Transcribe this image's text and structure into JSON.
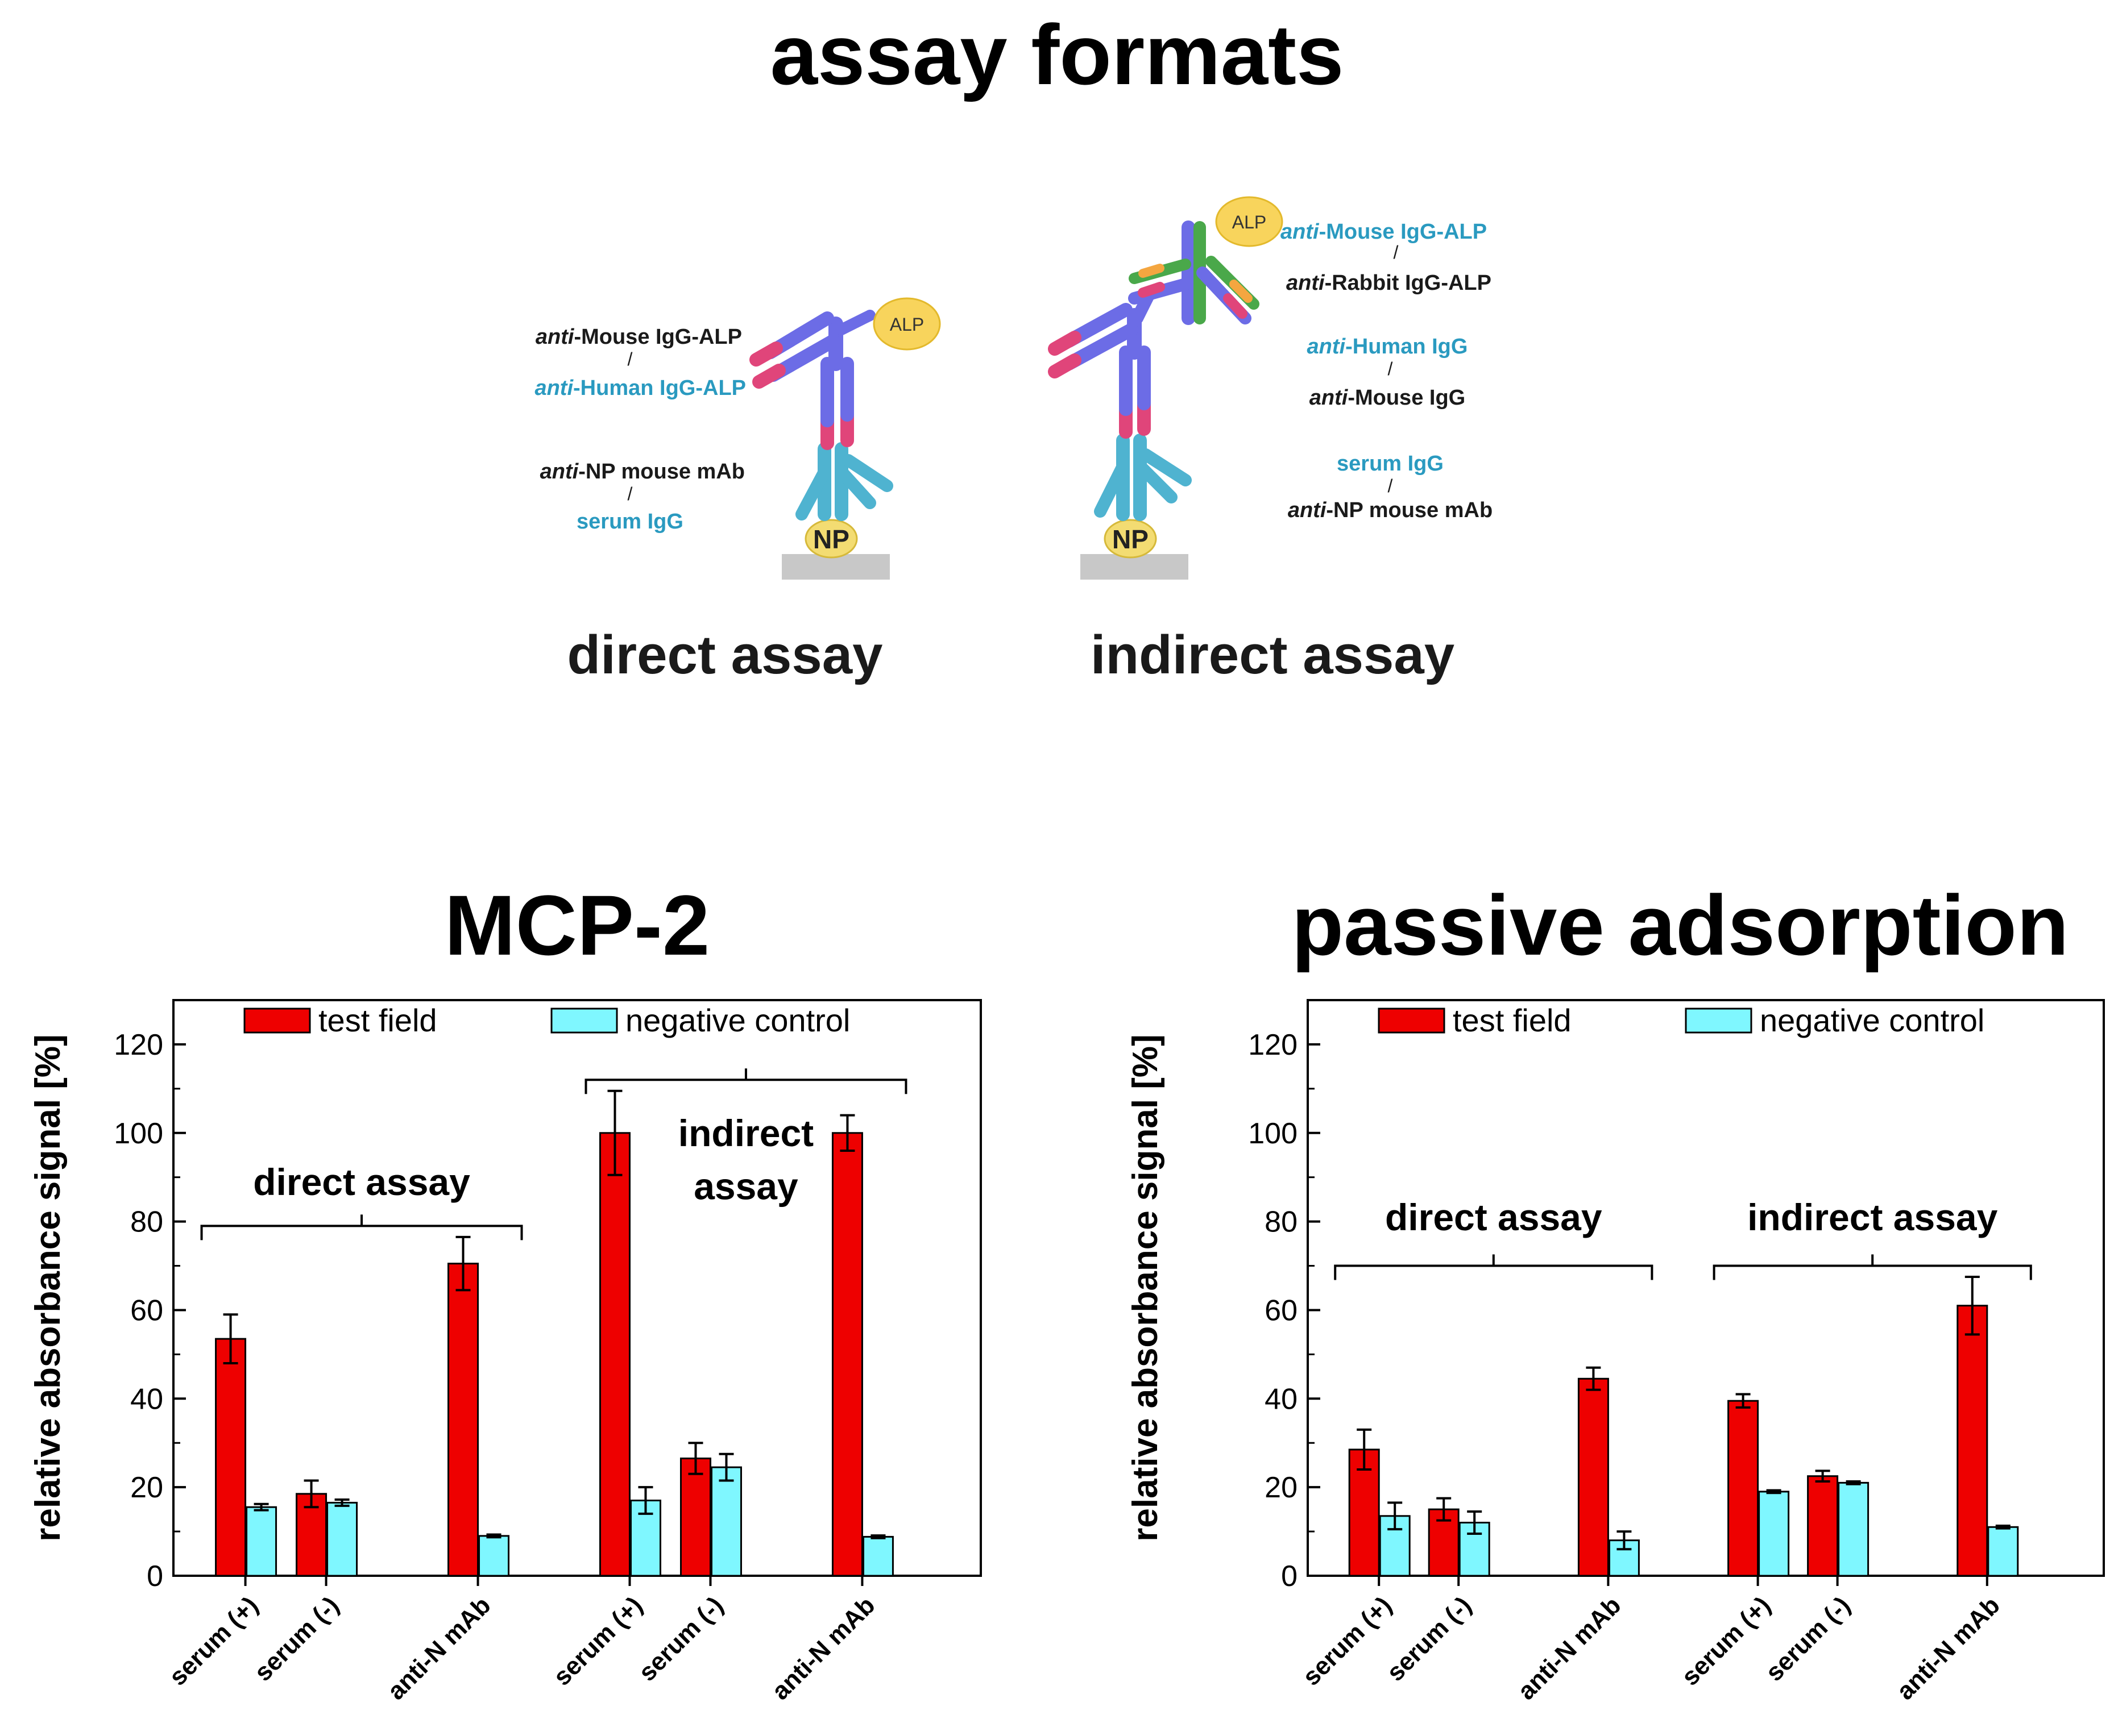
{
  "figure": {
    "title": "assay formats",
    "direct_label": "direct assay",
    "indirect_label": "indirect assay",
    "antigen": "NP",
    "enzyme": "ALP",
    "direct_labels": {
      "detect_1_prefix": "anti",
      "detect_1": "-Mouse IgG-ALP",
      "sep": "/",
      "detect_2_prefix": "anti",
      "detect_2": "-Human IgG-ALP",
      "capture_1_prefix": "anti",
      "capture_1": "-NP mouse mAb",
      "capture_2": "serum IgG"
    },
    "indirect_labels": {
      "sec_1_prefix": "anti",
      "sec_1": "-Mouse IgG-ALP",
      "sec_2_prefix": "anti",
      "sec_2": "-Rabbit IgG-ALP",
      "pri_1_prefix": "anti",
      "pri_1": "-Human IgG",
      "pri_2_prefix": "anti",
      "pri_2": "-Mouse IgG",
      "cap_1": "serum IgG",
      "cap_2_prefix": "anti",
      "cap_2": "-NP mouse mAb"
    }
  },
  "colors": {
    "test": "#ee0000",
    "negative": "#7ff7ff",
    "antibody_purple": "#6c6ce6",
    "antibody_teal": "#4fb3d0",
    "antibody_green": "#4aa84a",
    "tip_pink": "#e0457a",
    "tip_orange": "#f4a640",
    "alp_fill": "#f8d45c",
    "np_fill": "#f3dc72",
    "surface": "#c8c8c8",
    "label_teal": "#2a9ac0"
  },
  "chart_data": [
    {
      "type": "bar",
      "title": "MCP-2",
      "ylabel": "relative absorbance signal [%]",
      "ylim": [
        0,
        130
      ],
      "yticks": [
        0,
        20,
        40,
        60,
        80,
        100,
        120
      ],
      "categories": [
        "serum (+)",
        "serum (-)",
        "anti-N mAb",
        "serum (+)",
        "serum (-)",
        "anti-N mAb"
      ],
      "series": [
        {
          "name": "test field",
          "values": [
            53.5,
            18.5,
            70.5,
            100,
            26.5,
            100
          ],
          "errors": [
            5.5,
            3,
            6,
            9.5,
            3.5,
            4
          ]
        },
        {
          "name": "negative control",
          "values": [
            15.5,
            16.5,
            9,
            17,
            24.5,
            8.8
          ],
          "errors": [
            0.7,
            0.7,
            0.3,
            3,
            3,
            0.3
          ]
        }
      ],
      "groups": [
        {
          "label": "direct assay",
          "first": 0,
          "last": 2
        },
        {
          "label": "indirect assay",
          "label_lines": [
            "indirect",
            "assay"
          ],
          "first": 3,
          "last": 5
        }
      ]
    },
    {
      "type": "bar",
      "title": "passive adsorption",
      "ylabel": "relative absorbance signal [%]",
      "ylim": [
        0,
        130
      ],
      "yticks": [
        0,
        20,
        40,
        60,
        80,
        100,
        120
      ],
      "categories": [
        "serum (+)",
        "serum (-)",
        "anti-N mAb",
        "serum (+)",
        "serum (-)",
        "anti-N mAb"
      ],
      "series": [
        {
          "name": "test field",
          "values": [
            28.5,
            15,
            44.5,
            39.5,
            22.5,
            61
          ],
          "errors": [
            4.5,
            2.5,
            2.5,
            1.5,
            1.2,
            6.5
          ]
        },
        {
          "name": "negative control",
          "values": [
            13.5,
            12,
            8,
            19,
            21,
            11
          ],
          "errors": [
            3,
            2.5,
            2,
            0.3,
            0.3,
            0.3
          ]
        }
      ],
      "groups": [
        {
          "label": "direct assay",
          "first": 0,
          "last": 2
        },
        {
          "label": "indirect assay",
          "first": 3,
          "last": 5
        }
      ]
    }
  ]
}
